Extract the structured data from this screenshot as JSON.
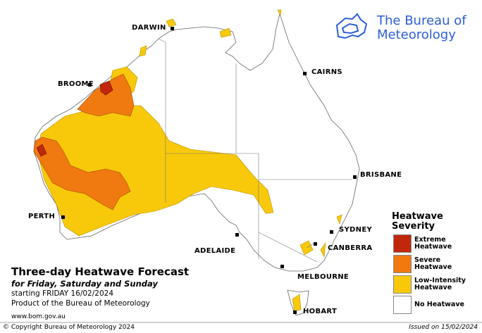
{
  "header": {
    "logo": "The Bureau of Meteorology"
  },
  "title": "Three-day Heatwave Forecast",
  "subtitle": "for Friday, Saturday and Sunday",
  "starting": "starting FRIDAY 16/02/2024",
  "product": "Product of the Bureau of Meteorology",
  "url": "www.bom.gov.au",
  "footer": {
    "copyright": "© Copyright Bureau of Meteorology 2024",
    "issued": "Issued on 15/02/2024"
  },
  "cities": [
    "DARWIN",
    "CAIRNS",
    "BROOME",
    "BRISBANE",
    "PERTH",
    "SYDNEY",
    "CANBERRA",
    "ADELAIDE",
    "MELBOURNE",
    "HOBART"
  ],
  "legend": {
    "title": "Heatwave Severity",
    "items": [
      {
        "label": "Extreme Heatwave",
        "color": "#c0270b"
      },
      {
        "label": "Severe Heatwave",
        "color": "#f07a10"
      },
      {
        "label": "Low-Intensity Heatwave",
        "color": "#f7c90a"
      },
      {
        "label": "No Heatwave",
        "color": "#ffffff"
      }
    ]
  }
}
